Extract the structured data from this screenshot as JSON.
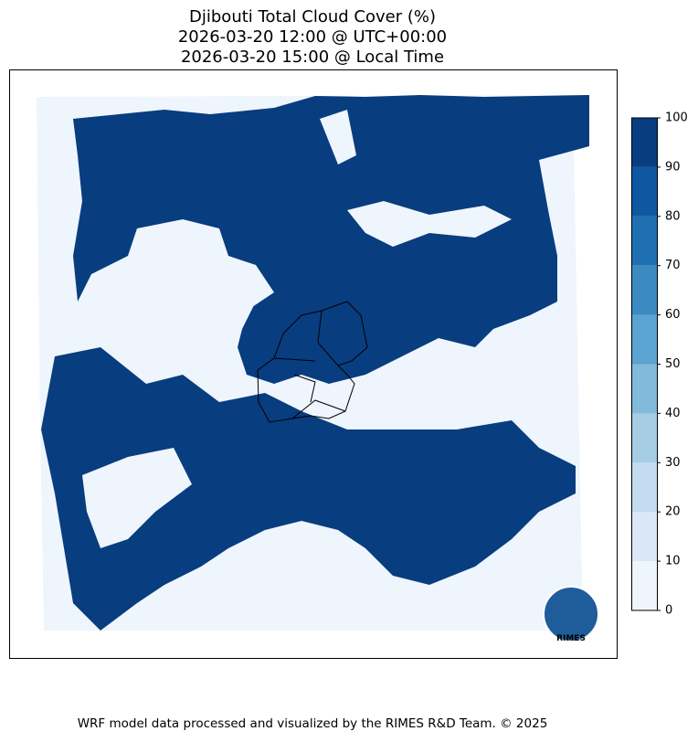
{
  "title_lines": [
    "Djibouti Total Cloud Cover (%)",
    "2026-03-20 12:00 @ UTC+00:00",
    "2026-03-20 15:00 @ Local Time"
  ],
  "colorbar": {
    "ticks": [
      0,
      10,
      20,
      30,
      40,
      50,
      60,
      70,
      80,
      90,
      100
    ],
    "colors": [
      "#eef5fc",
      "#dae8f6",
      "#c5dbef",
      "#a6cde4",
      "#82badb",
      "#5ba3d0",
      "#3b8bc2",
      "#1f70b3",
      "#0e58a1",
      "#083d7f"
    ]
  },
  "logo_text": "RIMES",
  "footer": "WRF model data processed and visualized by the RIMES R&D Team. © 2025"
}
